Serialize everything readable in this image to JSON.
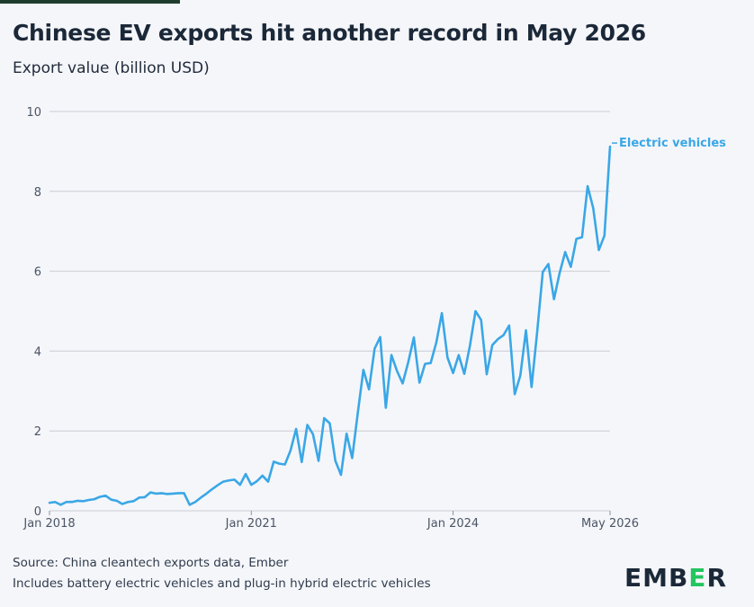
{
  "header": {
    "title": "Chinese EV exports hit another record in May 2026",
    "subtitle": "Export value (billion USD)"
  },
  "footer": {
    "source": "Source: China cleantech exports data, Ember",
    "note": "Includes battery electric vehicles and plug-in hybrid electric vehicles"
  },
  "logo": {
    "part1": "EMB",
    "part2": "E",
    "part3": "R"
  },
  "colors": {
    "series": "#3aa7e6",
    "grid": "#c9ccd3",
    "logo_accent": "#23c55e"
  },
  "chart_data": {
    "type": "line",
    "title": "Chinese EV exports hit another record in May 2026",
    "subtitle": "Export value (billion USD)",
    "xlabel": "",
    "ylabel": "",
    "ylim": [
      0,
      10
    ],
    "y_ticks": [
      0,
      2,
      4,
      6,
      8,
      10
    ],
    "x_ticks": [
      "Jan 2018",
      "Jan 2021",
      "Jan 2024",
      "May 2026"
    ],
    "grid": true,
    "x_start": "Jan 2018",
    "x_end": "May 2026",
    "series": [
      {
        "name": "Electric vehicles",
        "color": "#3aa7e6",
        "values": [
          0.2,
          0.22,
          0.15,
          0.22,
          0.22,
          0.25,
          0.24,
          0.27,
          0.29,
          0.35,
          0.38,
          0.28,
          0.25,
          0.17,
          0.22,
          0.24,
          0.33,
          0.34,
          0.46,
          0.43,
          0.44,
          0.42,
          0.43,
          0.44,
          0.44,
          0.15,
          0.22,
          0.33,
          0.43,
          0.54,
          0.64,
          0.73,
          0.76,
          0.78,
          0.65,
          0.92,
          0.65,
          0.74,
          0.88,
          0.73,
          1.23,
          1.18,
          1.16,
          1.51,
          2.05,
          1.22,
          2.15,
          1.92,
          1.25,
          2.32,
          2.19,
          1.25,
          0.9,
          1.93,
          1.32,
          2.45,
          3.53,
          3.04,
          4.06,
          4.35,
          2.58,
          3.9,
          3.5,
          3.19,
          3.72,
          4.34,
          3.21,
          3.68,
          3.7,
          4.21,
          4.95,
          3.84,
          3.45,
          3.9,
          3.43,
          4.13,
          5.0,
          4.78,
          3.42,
          4.15,
          4.3,
          4.4,
          4.64,
          2.92,
          3.39,
          4.52,
          3.1,
          4.48,
          5.98,
          6.18,
          5.3,
          5.95,
          6.48,
          6.11,
          6.81,
          6.85,
          8.13,
          7.58,
          6.53,
          6.89,
          9.12
        ]
      }
    ]
  }
}
